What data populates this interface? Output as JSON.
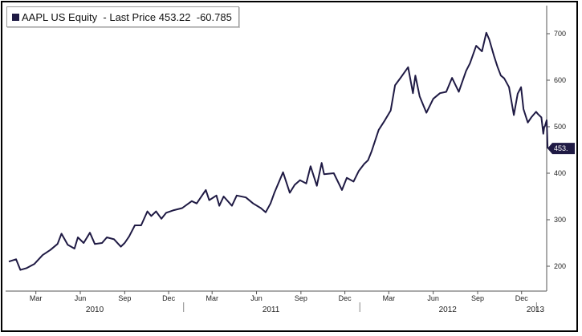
{
  "legend": {
    "text": "AAPL US Equity  - Last Price 453.22  -60.785",
    "swatch_color": "#1f1a44"
  },
  "colors": {
    "line": "#1f1a44",
    "axis": "#555555",
    "tag_bg": "#1f1a44"
  },
  "chart_data": {
    "type": "line",
    "title": "AAPL US Equity  - Last Price 453.22  -60.785",
    "xlabel": "",
    "ylabel": "",
    "ylim": [
      150,
      750
    ],
    "xlim": [
      "2010-01-04",
      "2013-01-22"
    ],
    "yticks": [
      200,
      300,
      400,
      500,
      600,
      700
    ],
    "ytick_labels": [
      "200",
      "300",
      "400",
      "500",
      "600",
      "700"
    ],
    "xticks": [
      {
        "date": "2010-03-01",
        "label": "Mar"
      },
      {
        "date": "2010-06-01",
        "label": "Jun"
      },
      {
        "date": "2010-09-01",
        "label": "Sep"
      },
      {
        "date": "2010-12-01",
        "label": "Dec"
      },
      {
        "date": "2011-03-01",
        "label": "Mar"
      },
      {
        "date": "2011-06-01",
        "label": "Jun"
      },
      {
        "date": "2011-09-01",
        "label": "Sep"
      },
      {
        "date": "2011-12-01",
        "label": "Dec"
      },
      {
        "date": "2012-03-01",
        "label": "Mar"
      },
      {
        "date": "2012-06-01",
        "label": "Jun"
      },
      {
        "date": "2012-09-01",
        "label": "Sep"
      },
      {
        "date": "2012-12-01",
        "label": "Dec"
      }
    ],
    "year_labels": [
      {
        "date": "2010-07-01",
        "label": "2010"
      },
      {
        "date": "2011-07-01",
        "label": "2011"
      },
      {
        "date": "2012-07-01",
        "label": "2012"
      },
      {
        "date": "2013-01-12",
        "label": "2013"
      }
    ],
    "year_separators": [
      "2011-01-01",
      "2012-01-01",
      "2013-01-01"
    ],
    "last_value_label": "453.",
    "grid": false,
    "series": [
      {
        "name": "AAPL US Equity",
        "points": [
          [
            "2010-01-04",
            210
          ],
          [
            "2010-01-19",
            215
          ],
          [
            "2010-01-28",
            192
          ],
          [
            "2010-02-10",
            196
          ],
          [
            "2010-02-26",
            205
          ],
          [
            "2010-03-15",
            224
          ],
          [
            "2010-03-31",
            235
          ],
          [
            "2010-04-15",
            248
          ],
          [
            "2010-04-23",
            270
          ],
          [
            "2010-05-06",
            246
          ],
          [
            "2010-05-20",
            238
          ],
          [
            "2010-05-27",
            262
          ],
          [
            "2010-06-08",
            250
          ],
          [
            "2010-06-21",
            272
          ],
          [
            "2010-07-01",
            248
          ],
          [
            "2010-07-16",
            250
          ],
          [
            "2010-07-26",
            262
          ],
          [
            "2010-08-10",
            258
          ],
          [
            "2010-08-24",
            242
          ],
          [
            "2010-09-01",
            250
          ],
          [
            "2010-09-10",
            264
          ],
          [
            "2010-09-22",
            288
          ],
          [
            "2010-10-05",
            288
          ],
          [
            "2010-10-18",
            318
          ],
          [
            "2010-10-26",
            308
          ],
          [
            "2010-11-05",
            318
          ],
          [
            "2010-11-16",
            302
          ],
          [
            "2010-11-26",
            315
          ],
          [
            "2010-12-10",
            320
          ],
          [
            "2010-12-29",
            325
          ],
          [
            "2011-01-18",
            340
          ],
          [
            "2011-01-28",
            335
          ],
          [
            "2011-02-16",
            364
          ],
          [
            "2011-02-23",
            342
          ],
          [
            "2011-03-10",
            352
          ],
          [
            "2011-03-16",
            330
          ],
          [
            "2011-03-25",
            350
          ],
          [
            "2011-04-11",
            330
          ],
          [
            "2011-04-21",
            352
          ],
          [
            "2011-05-10",
            348
          ],
          [
            "2011-05-25",
            335
          ],
          [
            "2011-06-10",
            325
          ],
          [
            "2011-06-20",
            316
          ],
          [
            "2011-06-30",
            335
          ],
          [
            "2011-07-08",
            358
          ],
          [
            "2011-07-26",
            402
          ],
          [
            "2011-08-09",
            358
          ],
          [
            "2011-08-19",
            375
          ],
          [
            "2011-08-30",
            385
          ],
          [
            "2011-09-12",
            378
          ],
          [
            "2011-09-21",
            415
          ],
          [
            "2011-10-04",
            373
          ],
          [
            "2011-10-14",
            422
          ],
          [
            "2011-10-19",
            398
          ],
          [
            "2011-11-08",
            400
          ],
          [
            "2011-11-25",
            364
          ],
          [
            "2011-12-05",
            390
          ],
          [
            "2011-12-19",
            382
          ],
          [
            "2011-12-30",
            405
          ],
          [
            "2012-01-10",
            420
          ],
          [
            "2012-01-18",
            428
          ],
          [
            "2012-01-25",
            446
          ],
          [
            "2012-02-09",
            493
          ],
          [
            "2012-02-22",
            514
          ],
          [
            "2012-03-05",
            535
          ],
          [
            "2012-03-14",
            589
          ],
          [
            "2012-03-26",
            606
          ],
          [
            "2012-04-10",
            628
          ],
          [
            "2012-04-20",
            572
          ],
          [
            "2012-04-25",
            610
          ],
          [
            "2012-05-04",
            565
          ],
          [
            "2012-05-18",
            530
          ],
          [
            "2012-06-01",
            560
          ],
          [
            "2012-06-15",
            572
          ],
          [
            "2012-06-28",
            575
          ],
          [
            "2012-07-10",
            605
          ],
          [
            "2012-07-24",
            575
          ],
          [
            "2012-08-08",
            620
          ],
          [
            "2012-08-16",
            636
          ],
          [
            "2012-08-29",
            674
          ],
          [
            "2012-09-10",
            662
          ],
          [
            "2012-09-19",
            702
          ],
          [
            "2012-09-25",
            688
          ],
          [
            "2012-10-05",
            652
          ],
          [
            "2012-10-12",
            629
          ],
          [
            "2012-10-19",
            610
          ],
          [
            "2012-10-26",
            604
          ],
          [
            "2012-11-05",
            585
          ],
          [
            "2012-11-15",
            525
          ],
          [
            "2012-11-23",
            571
          ],
          [
            "2012-11-30",
            585
          ],
          [
            "2012-12-05",
            538
          ],
          [
            "2012-12-14",
            509
          ],
          [
            "2012-12-21",
            520
          ],
          [
            "2012-12-31",
            532
          ],
          [
            "2013-01-04",
            527
          ],
          [
            "2013-01-11",
            520
          ],
          [
            "2013-01-15",
            485
          ],
          [
            "2013-01-17",
            500
          ],
          [
            "2013-01-18",
            500
          ],
          [
            "2013-01-22",
            514
          ],
          [
            "2013-01-24",
            453.22
          ]
        ]
      }
    ]
  }
}
